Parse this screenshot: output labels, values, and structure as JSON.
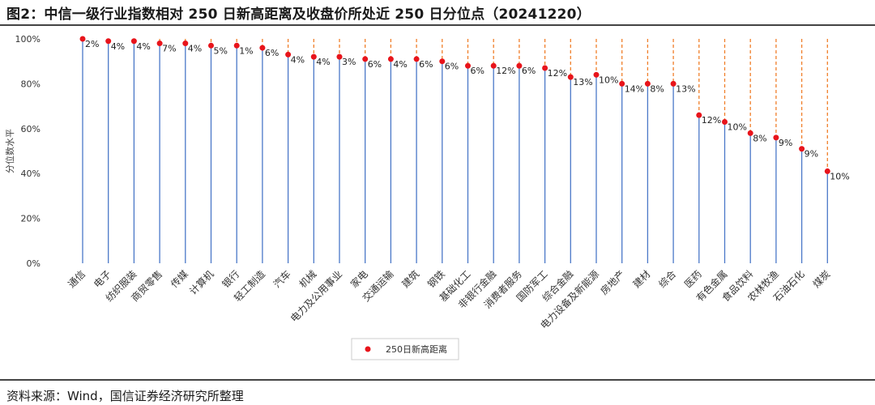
{
  "title": "图2：中信一级行业指数相对 250 日新高距离及收盘价所处近 250 日分位点（20241220）",
  "source": "资料来源：Wind，国信证券经济研究所整理",
  "chart_data": {
    "type": "scatter",
    "ylabel": "分位数水平",
    "ylim": [
      0,
      100
    ],
    "yticks": [
      "0%",
      "20%",
      "40%",
      "60%",
      "80%",
      "100%"
    ],
    "legend": "250日新高距离",
    "legend_position": "bottom-center",
    "colors": {
      "point": "#e8141b",
      "stem": "#4a78c8",
      "dashed": "#f07f2a"
    },
    "categories": [
      "通信",
      "电子",
      "纺织服装",
      "商贸零售",
      "传媒",
      "计算机",
      "银行",
      "轻工制造",
      "汽车",
      "机械",
      "电力及公用事业",
      "家电",
      "交通运输",
      "建筑",
      "钢铁",
      "基础化工",
      "非银行金融",
      "消费者服务",
      "国防军工",
      "综合金融",
      "电力设备及新能源",
      "房地产",
      "建材",
      "综合",
      "医药",
      "有色金属",
      "食品饮料",
      "农林牧渔",
      "石油石化",
      "煤炭"
    ],
    "percentile": [
      100,
      99,
      99,
      98,
      98,
      97,
      97,
      96,
      93,
      92,
      92,
      91,
      91,
      91,
      90,
      88,
      88,
      88,
      87,
      83,
      84,
      80,
      80,
      80,
      66,
      63,
      58,
      56,
      51,
      41
    ],
    "labels": [
      "2%",
      "4%",
      "4%",
      "7%",
      "4%",
      "5%",
      "1%",
      "6%",
      "4%",
      "4%",
      "3%",
      "6%",
      "4%",
      "6%",
      "6%",
      "6%",
      "12%",
      "6%",
      "12%",
      "13%",
      "10%",
      "14%",
      "8%",
      "13%",
      "12%",
      "10%",
      "8%",
      "9%",
      "9%",
      "10%"
    ]
  }
}
